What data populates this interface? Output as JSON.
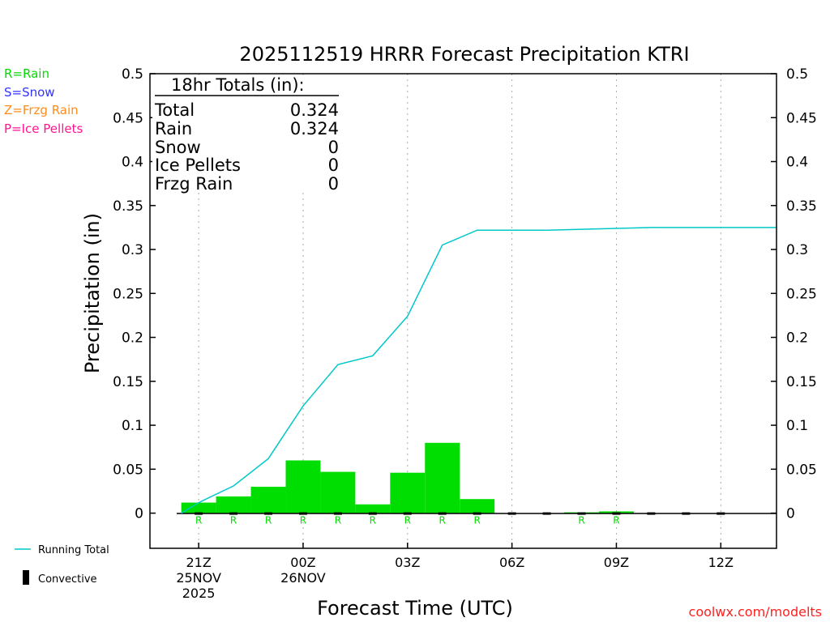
{
  "chart_data": {
    "type": "bar",
    "title": "2025112519 HRRR Forecast Precipitation KTRI",
    "xlabel": "Forecast Time (UTC)",
    "ylabel": "Precipitation (in)",
    "ylim": [
      -0.04,
      0.5
    ],
    "y_ticks": [
      0,
      0.05,
      0.1,
      0.15,
      0.2,
      0.25,
      0.3,
      0.35,
      0.4,
      0.45,
      0.5
    ],
    "y_tick_labels": [
      "0",
      "0.05",
      "0.1",
      "0.15",
      "0.2",
      "0.25",
      "0.3",
      "0.35",
      "0.4",
      "0.45",
      "0.5"
    ],
    "x_range_hours": [
      19.6,
      37.6
    ],
    "x_ticks": [
      {
        "hour": 21,
        "lines": [
          "21Z",
          "25NOV",
          "2025"
        ]
      },
      {
        "hour": 24,
        "lines": [
          "00Z",
          "26NOV"
        ]
      },
      {
        "hour": 27,
        "lines": [
          "03Z"
        ]
      },
      {
        "hour": 30,
        "lines": [
          "06Z"
        ]
      },
      {
        "hour": 33,
        "lines": [
          "09Z"
        ]
      },
      {
        "hour": 36,
        "lines": [
          "12Z"
        ]
      }
    ],
    "bars": {
      "name": "Hourly precipitation",
      "color": "#00dd00",
      "hours": [
        21,
        22,
        23,
        24,
        25,
        26,
        27,
        28,
        29,
        30,
        31,
        32,
        33,
        34,
        35,
        36
      ],
      "values": [
        0.012,
        0.019,
        0.03,
        0.06,
        0.047,
        0.01,
        0.046,
        0.08,
        0.016,
        0.0,
        0.0,
        0.0005,
        0.002,
        0.0,
        0.0,
        0.0
      ],
      "type_marks": [
        "R",
        "R",
        "R",
        "R",
        "R",
        "R",
        "R",
        "R",
        "R",
        "",
        "",
        "R",
        "R",
        "",
        "",
        ""
      ]
    },
    "running_total": {
      "name": "Running Total",
      "color": "#00c8c8",
      "hours": [
        20.5,
        21,
        22,
        23,
        24,
        25,
        26,
        27,
        28,
        29,
        30,
        31,
        32,
        33,
        34,
        35,
        36,
        37.6
      ],
      "values": [
        0,
        0.012,
        0.031,
        0.062,
        0.122,
        0.169,
        0.179,
        0.224,
        0.305,
        0.322,
        0.322,
        0.322,
        0.323,
        0.324,
        0.325,
        0.325,
        0.325,
        0.325
      ]
    }
  },
  "totals_box": {
    "header": "18hr Totals (in):",
    "rows": [
      {
        "label": "Total",
        "value": "0.324"
      },
      {
        "label": "Rain",
        "value": "0.324"
      },
      {
        "label": "Snow",
        "value": "0"
      },
      {
        "label": "Ice Pellets",
        "value": "0"
      },
      {
        "label": "Frzg Rain",
        "value": "0"
      }
    ]
  },
  "type_legend": [
    {
      "text": "R=Rain",
      "color": "#00dd00"
    },
    {
      "text": "S=Snow",
      "color": "#3333ff"
    },
    {
      "text": "Z=Frzg Rain",
      "color": "#ff8c1a"
    },
    {
      "text": "P=Ice Pellets",
      "color": "#ff1493"
    }
  ],
  "series_legend": {
    "running_total": "Running Total",
    "convective": "Convective"
  },
  "credit": "coolwx.com/modelts",
  "colors": {
    "credit": "#ff2020",
    "axis": "#000000",
    "grid": "#aaaaaa"
  }
}
